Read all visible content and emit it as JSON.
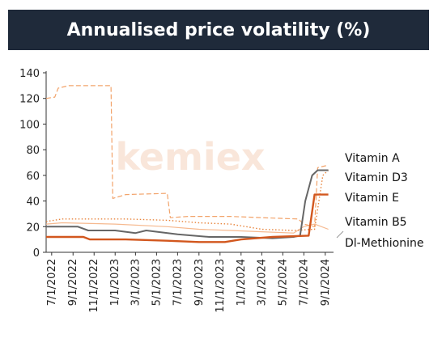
{
  "chart_data": {
    "type": "line",
    "title": "Annualised price volatility (%)",
    "watermark": "kemiex",
    "ylim": [
      0,
      140
    ],
    "yticks": [
      0,
      20,
      40,
      60,
      80,
      100,
      120,
      140
    ],
    "xlim": [
      "2022-06-15",
      "2024-09-25"
    ],
    "xticks": [
      "7/1/2022",
      "9/1/2022",
      "11/1/2022",
      "1/1/2023",
      "3/1/2023",
      "5/1/2023",
      "7/1/2023",
      "9/1/2023",
      "11/1/2023",
      "1/1/2024",
      "3/1/2024",
      "5/1/2024",
      "7/1/2024",
      "9/1/2024"
    ],
    "legend_position": "right",
    "series": [
      {
        "name": "Vitamin A",
        "color": "#f2a36a",
        "style": "dashed",
        "points": [
          [
            "2022-06-15",
            120
          ],
          [
            "2022-07-10",
            121
          ],
          [
            "2022-07-20",
            128
          ],
          [
            "2022-08-20",
            130
          ],
          [
            "2022-12-20",
            130
          ],
          [
            "2022-12-25",
            42
          ],
          [
            "2023-02-01",
            45
          ],
          [
            "2023-06-01",
            46
          ],
          [
            "2023-06-10",
            27
          ],
          [
            "2023-08-01",
            28
          ],
          [
            "2023-12-01",
            28
          ],
          [
            "2024-03-01",
            27
          ],
          [
            "2024-06-15",
            26
          ],
          [
            "2024-07-01",
            22
          ],
          [
            "2024-08-01",
            20
          ],
          [
            "2024-08-10",
            66
          ],
          [
            "2024-09-10",
            68
          ]
        ]
      },
      {
        "name": "Vitamin D3",
        "color": "#666666",
        "style": "solid",
        "points": [
          [
            "2022-06-15",
            20
          ],
          [
            "2022-09-15",
            20
          ],
          [
            "2022-10-15",
            17
          ],
          [
            "2023-01-01",
            17
          ],
          [
            "2023-03-01",
            15
          ],
          [
            "2023-04-01",
            17
          ],
          [
            "2023-07-01",
            14
          ],
          [
            "2023-10-01",
            12
          ],
          [
            "2024-01-01",
            12
          ],
          [
            "2024-04-01",
            11
          ],
          [
            "2024-06-01",
            12
          ],
          [
            "2024-06-20",
            13
          ],
          [
            "2024-07-05",
            40
          ],
          [
            "2024-07-25",
            60
          ],
          [
            "2024-08-10",
            64
          ],
          [
            "2024-09-10",
            64
          ]
        ]
      },
      {
        "name": "Vitamin E",
        "color": "#d2571e",
        "style": "solid",
        "points": [
          [
            "2022-06-15",
            12
          ],
          [
            "2022-10-01",
            12
          ],
          [
            "2022-10-20",
            10
          ],
          [
            "2023-02-01",
            10
          ],
          [
            "2023-06-01",
            9
          ],
          [
            "2023-09-01",
            8
          ],
          [
            "2023-11-15",
            8
          ],
          [
            "2024-01-01",
            10
          ],
          [
            "2024-04-01",
            12
          ],
          [
            "2024-07-15",
            13
          ],
          [
            "2024-08-01",
            45
          ],
          [
            "2024-09-10",
            45
          ]
        ]
      },
      {
        "name": "Vitamin B5",
        "color": "#e8833a",
        "style": "dotted",
        "points": [
          [
            "2022-06-15",
            24
          ],
          [
            "2022-08-01",
            26
          ],
          [
            "2023-02-01",
            26
          ],
          [
            "2023-06-01",
            25
          ],
          [
            "2023-09-01",
            23
          ],
          [
            "2023-12-01",
            22
          ],
          [
            "2024-03-01",
            18
          ],
          [
            "2024-06-01",
            17
          ],
          [
            "2024-08-01",
            18
          ],
          [
            "2024-08-25",
            60
          ],
          [
            "2024-09-10",
            64
          ]
        ]
      },
      {
        "name": "Dl-Methionine",
        "color": "#f6b98f",
        "style": "solid",
        "points": [
          [
            "2022-06-15",
            22
          ],
          [
            "2022-08-01",
            23
          ],
          [
            "2023-01-01",
            22
          ],
          [
            "2023-06-01",
            20
          ],
          [
            "2023-09-01",
            18
          ],
          [
            "2023-12-01",
            17
          ],
          [
            "2024-03-01",
            16
          ],
          [
            "2024-06-01",
            15
          ],
          [
            "2024-07-01",
            20
          ],
          [
            "2024-08-01",
            22
          ],
          [
            "2024-09-10",
            18
          ]
        ]
      }
    ]
  }
}
